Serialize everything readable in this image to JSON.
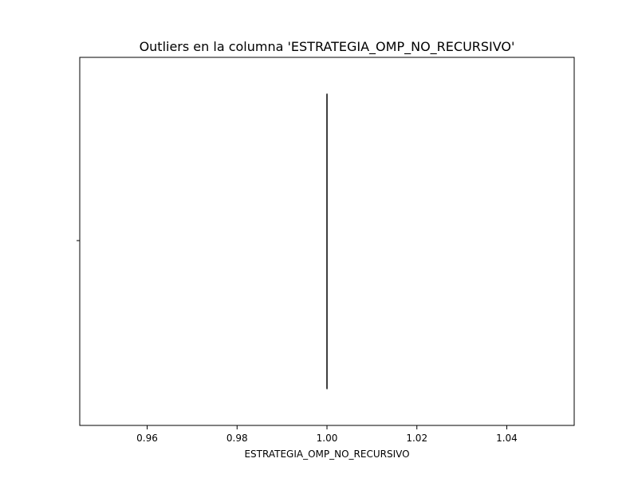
{
  "chart_data": {
    "type": "box",
    "orientation": "horizontal",
    "title": "Outliers en la columna 'ESTRATEGIA_OMP_NO_RECURSIVO'",
    "xlabel": "ESTRATEGIA_OMP_NO_RECURSIVO",
    "ylabel": "",
    "xlim": [
      0.945,
      1.055
    ],
    "xticks": [
      0.96,
      0.98,
      1.0,
      1.02,
      1.04
    ],
    "xtick_labels": [
      "0.96",
      "0.98",
      "1.00",
      "1.02",
      "1.04"
    ],
    "box": {
      "min": 1.0,
      "q1": 1.0,
      "median": 1.0,
      "q3": 1.0,
      "max": 1.0,
      "outliers": []
    },
    "grid": false,
    "legend": false,
    "colors": {
      "box_line": "#3f3f3f",
      "axes": "#000000",
      "background": "#ffffff"
    }
  }
}
